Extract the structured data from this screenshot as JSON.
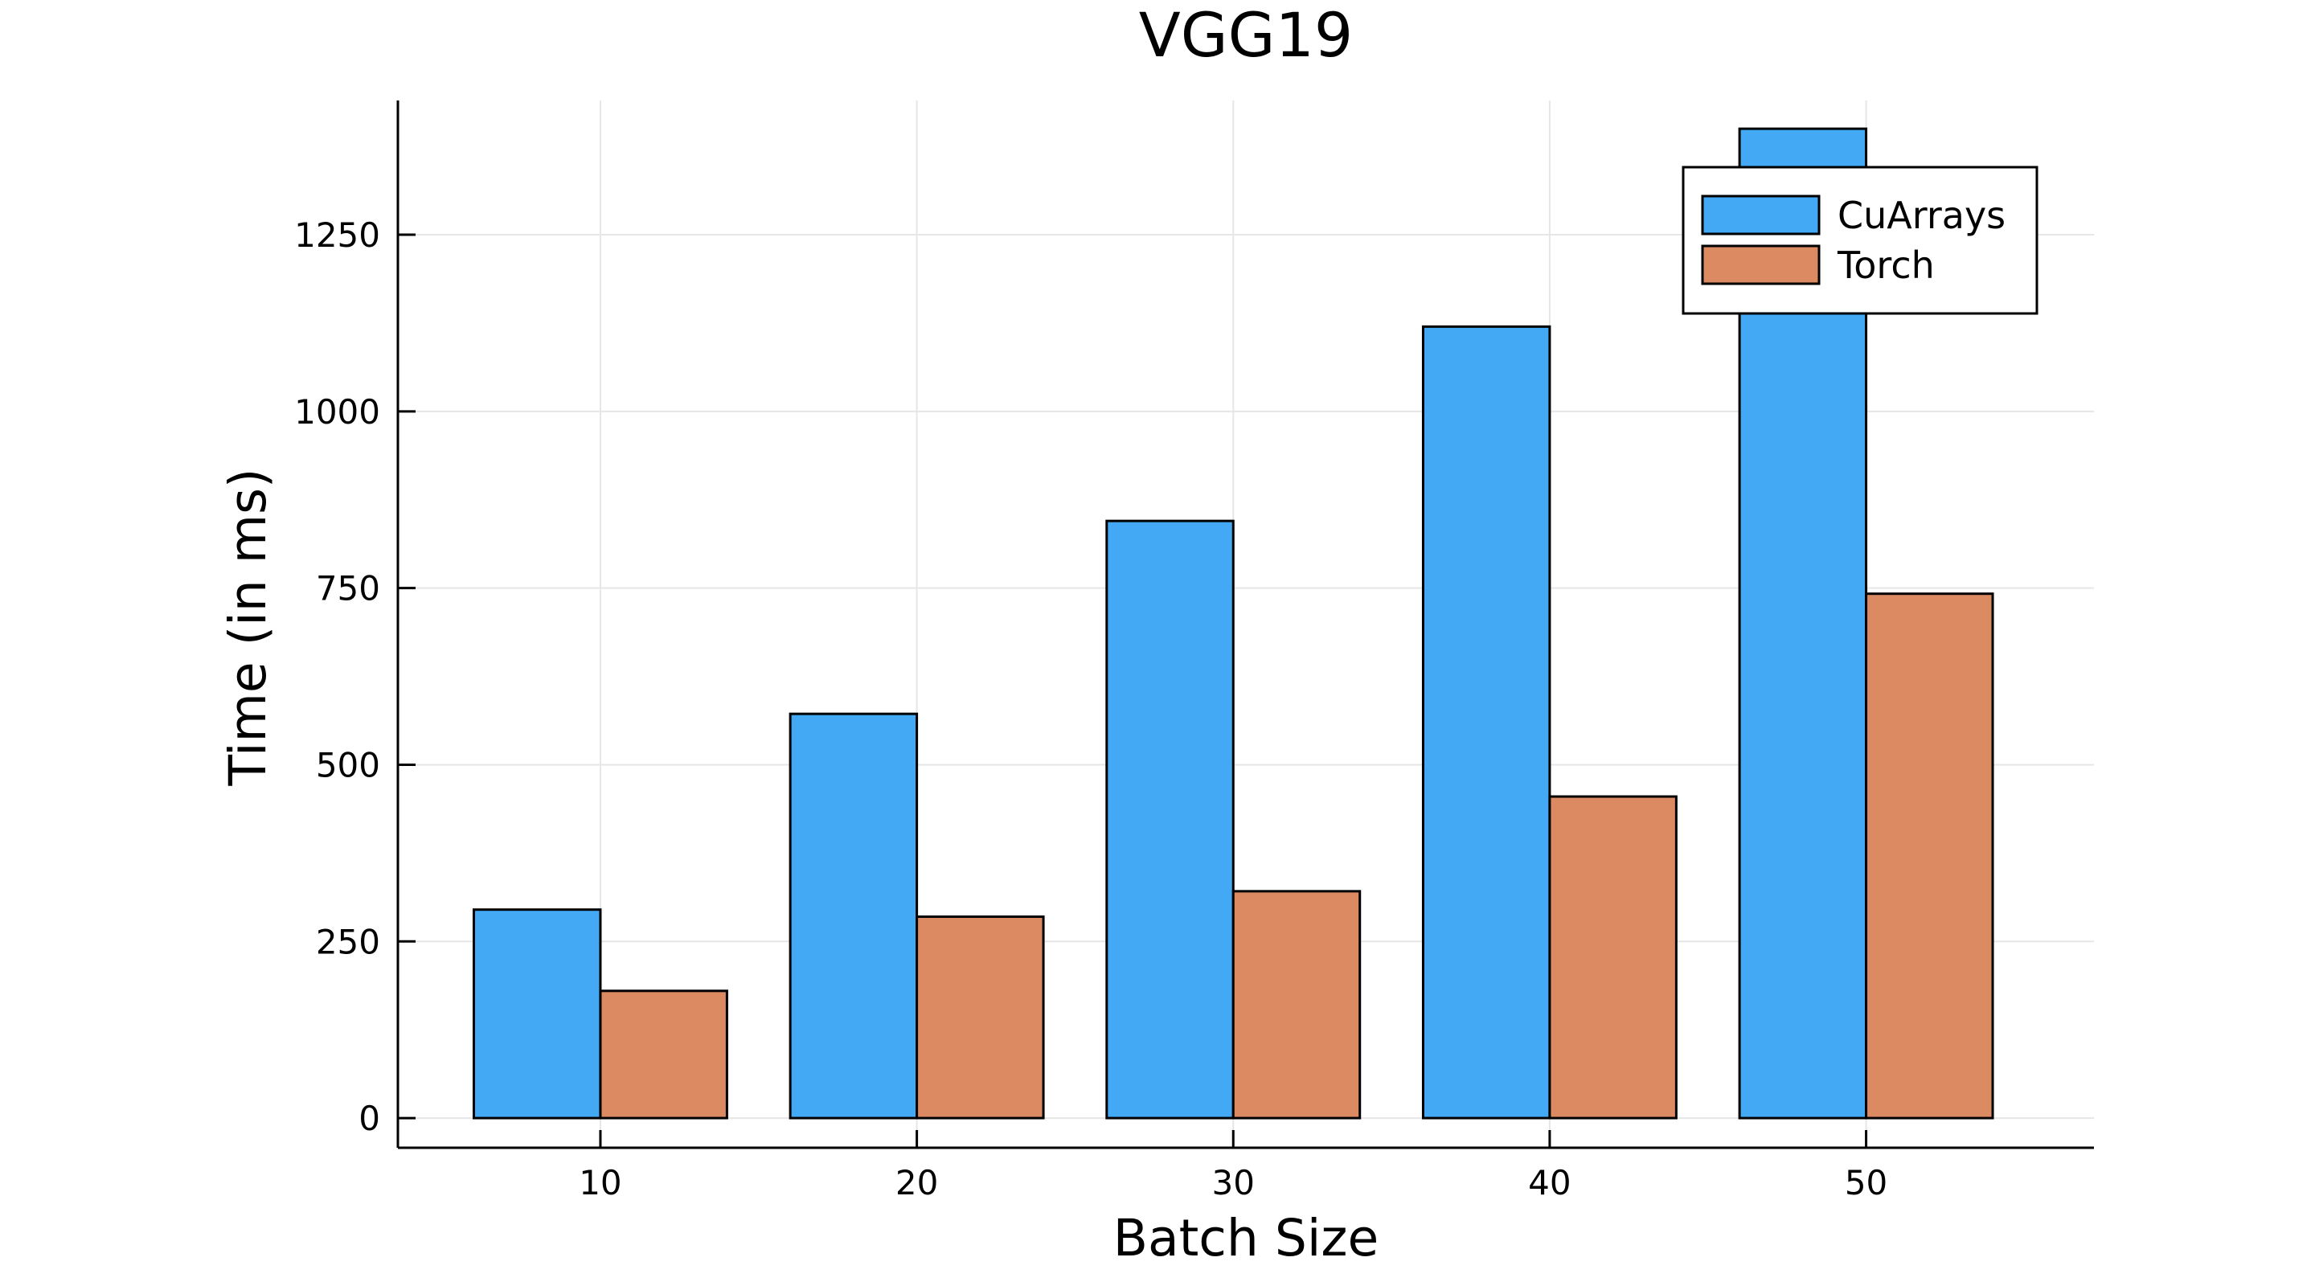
{
  "chart_data": {
    "type": "bar",
    "title": "VGG19",
    "xlabel": "Batch Size",
    "ylabel": "Time (in ms)",
    "categories": [
      "10",
      "20",
      "30",
      "40",
      "50"
    ],
    "series": [
      {
        "name": "CuArrays",
        "color": "#44a9f4",
        "values": [
          295,
          572,
          845,
          1120,
          1400
        ]
      },
      {
        "name": "Torch",
        "color": "#dc8a62",
        "values": [
          180,
          285,
          321,
          455,
          742
        ]
      }
    ],
    "yticks": [
      0,
      250,
      500,
      750,
      1000,
      1250
    ],
    "xticks": [
      10,
      20,
      30,
      40,
      50
    ],
    "xlim": [
      3.6,
      57.2
    ],
    "ylim": [
      -42,
      1440
    ],
    "grid": true,
    "legend_position": "top-right"
  }
}
